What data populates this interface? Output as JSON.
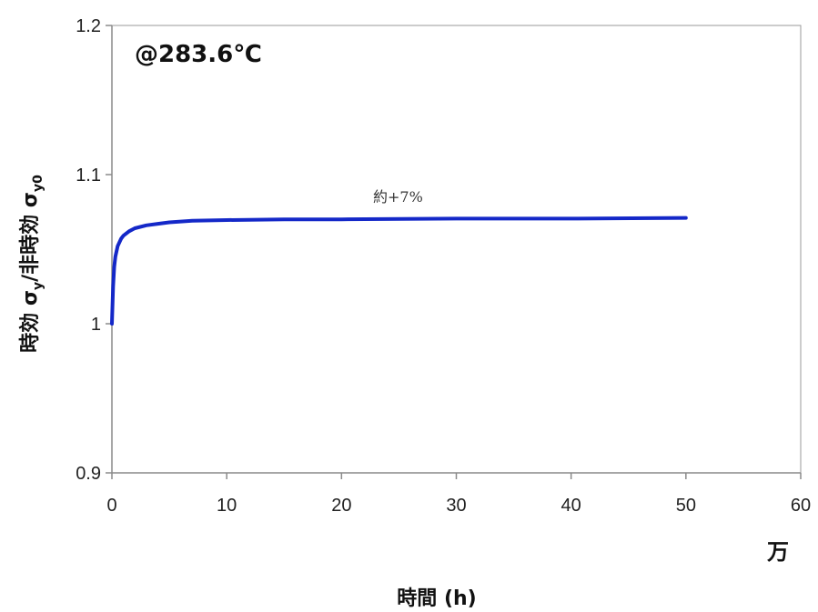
{
  "chart_data": {
    "type": "line",
    "annotation_temp": "@283.6℃",
    "annotation_change": "約+7%",
    "xlabel": "時間 (h)",
    "xlabel_unit": "万",
    "ylabel_main": "時効 σ",
    "ylabel_sub1": "y",
    "ylabel_mid": "/非時効 σ",
    "ylabel_sub2": "y0",
    "xlim": [
      0,
      60
    ],
    "ylim": [
      0.9,
      1.2
    ],
    "x_ticks": [
      0,
      10,
      20,
      30,
      40,
      50,
      60
    ],
    "x_tick_labels": [
      "0",
      "10",
      "20",
      "30",
      "40",
      "50",
      "60"
    ],
    "y_ticks": [
      0.9,
      1.0,
      1.1,
      1.2
    ],
    "y_tick_labels": [
      "0.9",
      "1",
      "1.1",
      "1.2"
    ],
    "grid": false,
    "series": [
      {
        "color": "#1428c8",
        "x": [
          0,
          0.1,
          0.2,
          0.3,
          0.5,
          0.8,
          1.0,
          1.5,
          2,
          3,
          4,
          5,
          7,
          10,
          15,
          20,
          30,
          40,
          50
        ],
        "y": [
          1.0,
          1.025,
          1.038,
          1.045,
          1.052,
          1.057,
          1.059,
          1.062,
          1.064,
          1.066,
          1.067,
          1.068,
          1.069,
          1.0695,
          1.07,
          1.07,
          1.0705,
          1.0705,
          1.071
        ]
      }
    ]
  }
}
